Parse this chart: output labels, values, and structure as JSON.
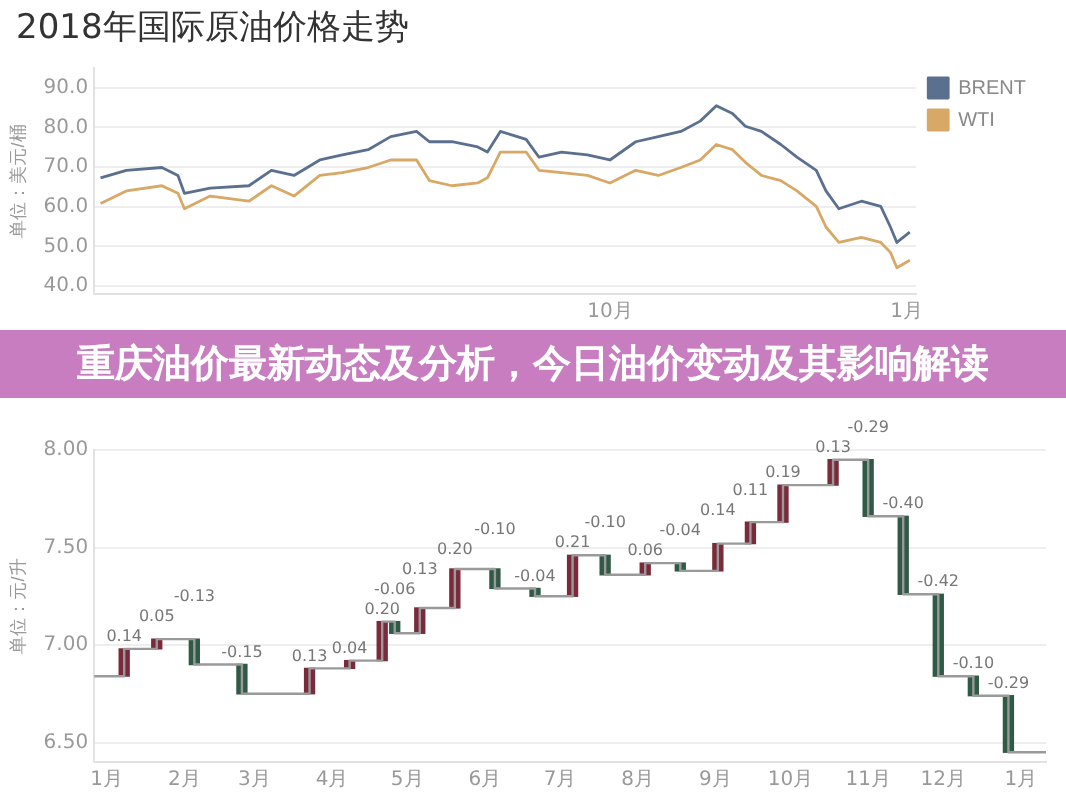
{
  "chart_data": [
    {
      "type": "line",
      "title": "2018年国际原油价格走势",
      "ylabel": "单位：美元/桶",
      "x": [
        "2018-04-26",
        "2018-05-04",
        "2018-05-15",
        "2018-05-20",
        "2018-05-22",
        "2018-05-30",
        "2018-06-11",
        "2018-06-18",
        "2018-06-25",
        "2018-07-03",
        "2018-07-10",
        "2018-07-18",
        "2018-07-25",
        "2018-08-02",
        "2018-08-06",
        "2018-08-13",
        "2018-08-21",
        "2018-08-24",
        "2018-08-28",
        "2018-09-05",
        "2018-09-09",
        "2018-09-16",
        "2018-09-24",
        "2018-10-01",
        "2018-10-09",
        "2018-10-16",
        "2018-10-23",
        "2018-10-29",
        "2018-11-03",
        "2018-11-08",
        "2018-11-12",
        "2018-11-17",
        "2018-11-23",
        "2018-11-28",
        "2018-12-04",
        "2018-12-07",
        "2018-12-11",
        "2018-12-18",
        "2018-12-24",
        "2018-12-27",
        "2018-12-29",
        "2019-01-02"
      ],
      "series": [
        {
          "name": "BRENT",
          "color": "#5b6f8f",
          "values": [
            67.3,
            69.2,
            69.9,
            67.9,
            63.4,
            64.7,
            65.3,
            69.2,
            67.9,
            71.8,
            73.1,
            74.4,
            77.7,
            79.0,
            76.4,
            76.4,
            75.1,
            73.8,
            79.0,
            77.0,
            72.5,
            73.8,
            73.1,
            71.8,
            76.4,
            77.7,
            79.0,
            81.6,
            85.5,
            83.5,
            80.3,
            79.0,
            75.7,
            72.5,
            69.2,
            64.0,
            59.5,
            61.4,
            60.1,
            54.9,
            51.0,
            53.6
          ]
        },
        {
          "name": "WTI",
          "color": "#d8a866",
          "values": [
            60.8,
            64.0,
            65.3,
            63.4,
            59.5,
            62.7,
            61.4,
            65.3,
            62.7,
            67.9,
            68.6,
            69.9,
            71.8,
            71.8,
            66.6,
            65.3,
            66.0,
            67.3,
            73.8,
            73.8,
            69.2,
            68.6,
            67.9,
            66.0,
            69.2,
            67.9,
            69.9,
            71.8,
            75.7,
            74.4,
            71.2,
            67.9,
            66.6,
            64.0,
            60.1,
            54.9,
            51.0,
            52.3,
            51.0,
            48.5,
            44.6,
            46.5
          ]
        }
      ],
      "xlim": [
        "2018-04-24",
        "2019-01-04"
      ],
      "xticks": [
        {
          "value": "2018-10",
          "label": "10月"
        },
        {
          "value": "2019-01",
          "label": "1月"
        }
      ],
      "ylim": [
        38,
        95
      ],
      "yticks": [
        {
          "value": 40,
          "label": "40.0"
        },
        {
          "value": 50,
          "label": "50.0"
        },
        {
          "value": 60,
          "label": "60.0"
        },
        {
          "value": 70,
          "label": "70.0"
        },
        {
          "value": 80,
          "label": "80.0"
        },
        {
          "value": 90,
          "label": "90.0"
        }
      ],
      "grid": "y",
      "legend": "top right",
      "marker": "none"
    },
    {
      "type": "other",
      "title": "重庆油价最新动态及分析，今日油价变动及其影响解读"
    },
    {
      "type": "bar",
      "ylabel": "单位：元/升",
      "marker": "none",
      "series": [
        {
          "type": "step",
          "color": "#9a9a9a",
          "x": [
            "2017-12-27",
            "2018-01-08",
            "2018-01-21",
            "2018-02-05",
            "2018-02-24",
            "2018-03-23",
            "2018-04-08",
            "2018-04-21",
            "2018-04-26",
            "2018-05-06",
            "2018-05-20",
            "2018-06-05",
            "2018-06-21",
            "2018-07-06",
            "2018-07-19",
            "2018-08-04",
            "2018-08-18",
            "2018-09-02",
            "2018-09-15",
            "2018-09-28",
            "2018-10-18",
            "2018-11-01",
            "2018-11-15",
            "2018-11-29",
            "2018-12-13",
            "2018-12-27",
            "2019-01-11"
          ],
          "values": [
            6.84,
            6.98,
            7.03,
            6.9,
            6.75,
            6.88,
            6.92,
            7.12,
            7.06,
            7.19,
            7.39,
            7.29,
            7.25,
            7.46,
            7.36,
            7.42,
            7.38,
            7.52,
            7.63,
            7.82,
            7.95,
            7.66,
            7.26,
            6.84,
            6.74,
            6.45,
            6.45
          ]
        },
        {
          "type": "bar",
          "x": [
            "2018-01-08",
            "2018-01-21",
            "2018-02-05",
            "2018-02-24",
            "2018-03-23",
            "2018-04-08",
            "2018-04-21",
            "2018-04-26",
            "2018-05-06",
            "2018-05-20",
            "2018-06-05",
            "2018-06-21",
            "2018-07-06",
            "2018-07-19",
            "2018-08-04",
            "2018-08-18",
            "2018-09-02",
            "2018-09-15",
            "2018-09-28",
            "2018-10-18",
            "2018-11-01",
            "2018-11-15",
            "2018-11-29",
            "2018-12-13",
            "2018-12-27"
          ],
          "base": [
            6.84,
            6.98,
            7.03,
            6.9,
            6.75,
            6.88,
            6.92,
            7.12,
            7.06,
            7.19,
            7.39,
            7.29,
            7.25,
            7.46,
            7.36,
            7.42,
            7.38,
            7.52,
            7.63,
            7.82,
            7.95,
            7.66,
            7.26,
            6.84,
            6.74
          ],
          "values": [
            0.14,
            0.05,
            -0.13,
            -0.15,
            0.13,
            0.04,
            0.2,
            -0.06,
            0.13,
            0.2,
            -0.1,
            -0.04,
            0.21,
            -0.1,
            0.06,
            -0.04,
            0.14,
            0.11,
            0.19,
            0.13,
            -0.29,
            -0.4,
            -0.42,
            -0.1,
            -0.29
          ],
          "colors": [
            "#7a2a3a",
            "#7a2a3a",
            "#2f5a45",
            "#2f5a45",
            "#7a2a3a",
            "#7a2a3a",
            "#7a2a3a",
            "#2f5a45",
            "#7a2a3a",
            "#7a2a3a",
            "#2f5a45",
            "#2f5a45",
            "#7a2a3a",
            "#2f5a45",
            "#7a2a3a",
            "#2f5a45",
            "#7a2a3a",
            "#7a2a3a",
            "#7a2a3a",
            "#7a2a3a",
            "#2f5a45",
            "#2f5a45",
            "#2f5a45",
            "#2f5a45",
            "#2f5a45"
          ],
          "value_labels": [
            "0.14",
            "0.05",
            "-0.13",
            "-0.15",
            "0.13",
            "0.04",
            "0.20",
            "-0.06",
            "0.13",
            "0.20",
            "-0.10",
            "-0.04",
            "0.21",
            "-0.10",
            "0.06",
            "-0.04",
            "0.14",
            "0.11",
            "0.19",
            "0.13",
            "-0.29",
            "-0.40",
            "-0.42",
            "-0.10",
            "-0.29"
          ]
        }
      ],
      "xlim": [
        "2017-12-27",
        "2019-01-11"
      ],
      "xticks": [
        {
          "value": "2018-01",
          "label": "1月"
        },
        {
          "value": "2018-02",
          "label": "2月"
        },
        {
          "value": "2018-03",
          "label": "3月"
        },
        {
          "value": "2018-04",
          "label": "4月"
        },
        {
          "value": "2018-05",
          "label": "5月"
        },
        {
          "value": "2018-06",
          "label": "6月"
        },
        {
          "value": "2018-07",
          "label": "7月"
        },
        {
          "value": "2018-08",
          "label": "8月"
        },
        {
          "value": "2018-09",
          "label": "9月"
        },
        {
          "value": "2018-10",
          "label": "10月"
        },
        {
          "value": "2018-11",
          "label": "11月"
        },
        {
          "value": "2018-12",
          "label": "12月"
        },
        {
          "value": "2019-01",
          "label": "1月"
        }
      ],
      "ylim": [
        6.4,
        8.0
      ],
      "yticks": [
        {
          "value": 6.5,
          "label": "6.50"
        },
        {
          "value": 7,
          "label": "7.00"
        },
        {
          "value": 7.5,
          "label": "7.50"
        },
        {
          "value": 8,
          "label": "8.00"
        }
      ],
      "grid": "y"
    }
  ]
}
